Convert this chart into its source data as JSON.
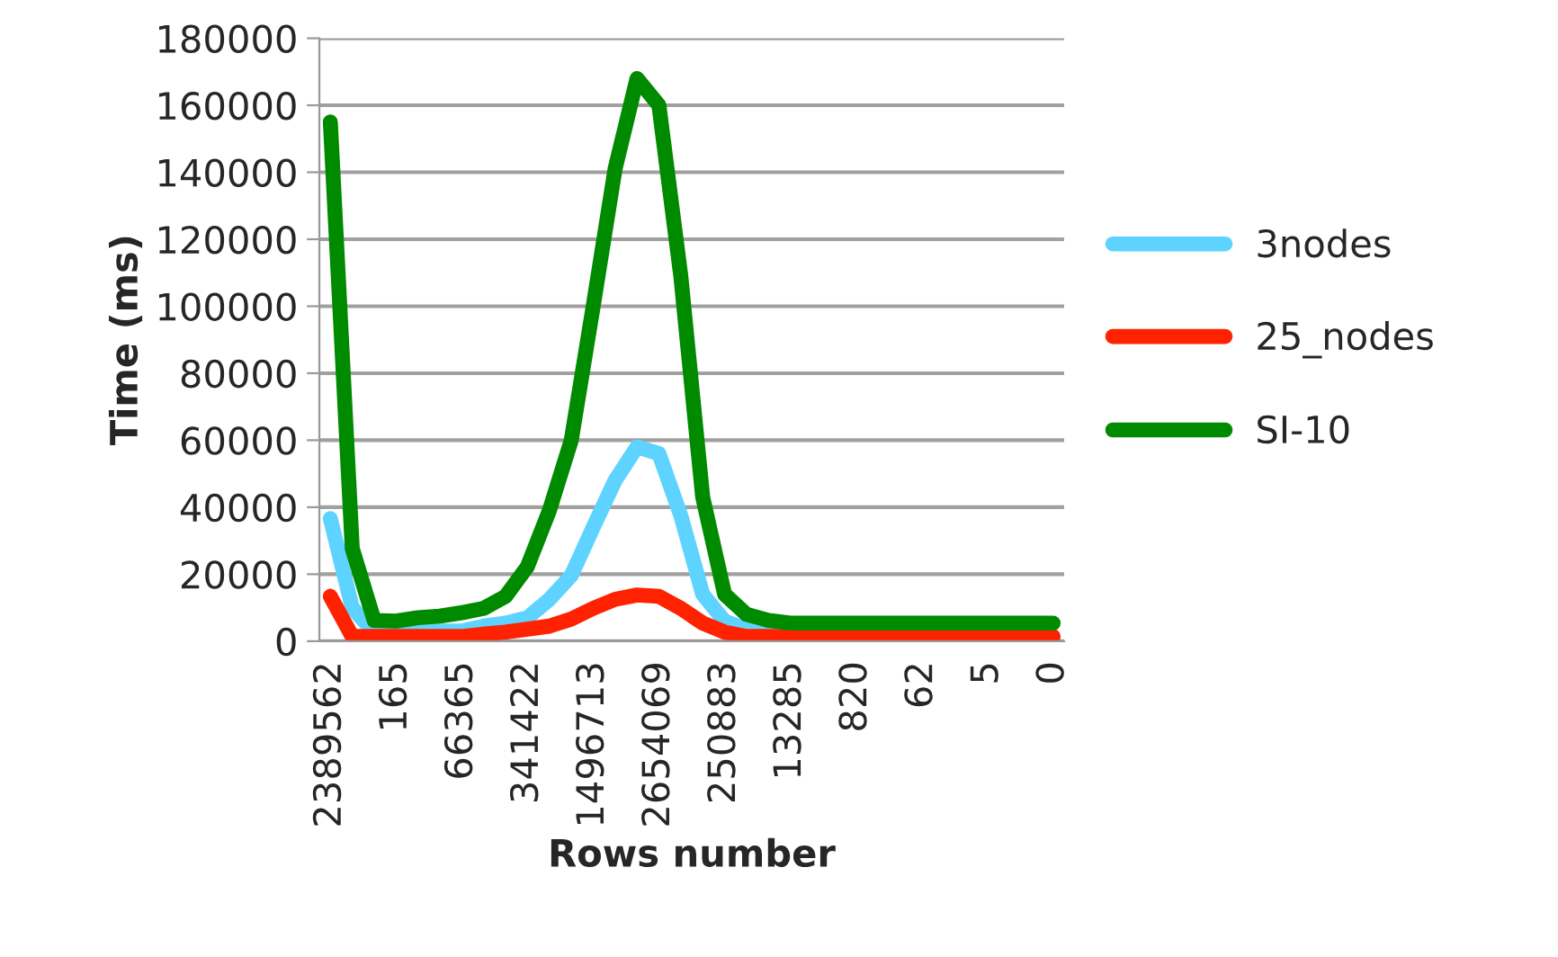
{
  "chart_data": {
    "type": "line",
    "xlabel": "Rows number",
    "ylabel": "Time (ms)",
    "categories": [
      "2389562",
      null,
      null,
      "165",
      null,
      null,
      "66365",
      null,
      null,
      "341422",
      null,
      null,
      "1496713",
      null,
      null,
      "2654069",
      null,
      null,
      "250883",
      null,
      null,
      "13285",
      null,
      null,
      "820",
      null,
      null,
      "62",
      null,
      null,
      "5",
      null,
      null,
      "0"
    ],
    "series": [
      {
        "name": "3nodes",
        "color": "#5fd3ff",
        "values": [
          36600,
          10000,
          2700,
          3000,
          3000,
          3000,
          3000,
          4500,
          5400,
          7000,
          12500,
          19600,
          34000,
          48000,
          58000,
          56000,
          37500,
          14000,
          6000,
          3500,
          2500,
          null,
          null,
          null,
          null,
          null,
          null,
          null,
          null,
          null,
          null,
          null,
          null,
          null
        ]
      },
      {
        "name": "25_nodes",
        "color": "#ff2200",
        "values": [
          13400,
          1400,
          1400,
          1400,
          1400,
          1400,
          1400,
          2100,
          2700,
          3600,
          4500,
          6600,
          9800,
          12500,
          13800,
          13400,
          9800,
          5400,
          2700,
          1400,
          1400,
          1400,
          1400,
          1400,
          1400,
          1400,
          1400,
          1400,
          1400,
          1400,
          1400,
          1400,
          1400,
          1400
        ]
      },
      {
        "name": "SI-10",
        "color": "#008a00",
        "values": [
          155000,
          27700,
          6200,
          6000,
          7000,
          7500,
          8500,
          9800,
          13400,
          22300,
          39000,
          60000,
          100000,
          141000,
          168000,
          160000,
          109000,
          43000,
          14000,
          8000,
          6200,
          5400,
          5400,
          5400,
          5400,
          5400,
          5400,
          5400,
          5400,
          5400,
          5400,
          5400,
          5400,
          5400
        ]
      }
    ],
    "ylim": [
      0,
      180000
    ],
    "yticks": [
      0,
      20000,
      40000,
      60000,
      80000,
      100000,
      120000,
      140000,
      160000,
      180000
    ],
    "grid": "y",
    "legend": "right",
    "marker": "none",
    "line_style": "solid"
  }
}
